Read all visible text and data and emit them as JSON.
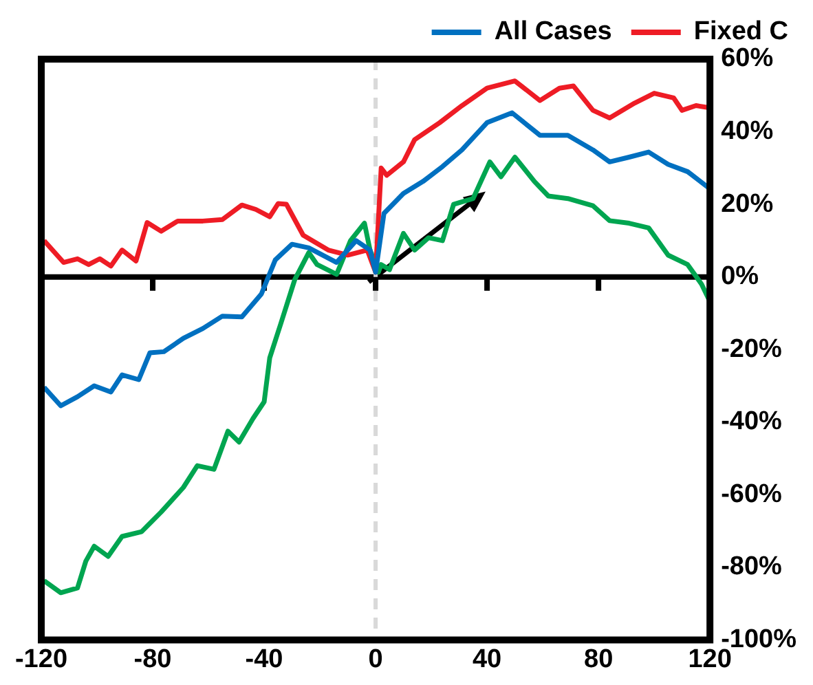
{
  "chart_data": {
    "type": "line",
    "x": [
      -119,
      -112,
      -107,
      -103,
      -99,
      -95,
      -91,
      -86,
      -82,
      -77,
      -71,
      -62,
      -55,
      -48,
      -43,
      -38,
      -35,
      -32,
      -26,
      -17,
      -10,
      -3,
      0,
      2,
      4,
      10,
      14,
      23,
      31,
      40,
      50,
      59,
      66,
      71,
      78,
      84,
      93,
      100,
      107,
      110,
      115,
      120
    ],
    "series": [
      {
        "name": "All Cases",
        "color": "#0070c0",
        "x": [
          -119,
          -113,
          -107,
          -101,
          -95,
          -91,
          -85,
          -81,
          -76,
          -69,
          -62,
          -55,
          -48,
          -41,
          -36,
          -30,
          -24,
          -14,
          -7,
          -2,
          0,
          3,
          10,
          17,
          24,
          31,
          40,
          49,
          59,
          69,
          78,
          84,
          91,
          98,
          105,
          112,
          120
        ],
        "values": [
          -30.4,
          -35.5,
          -33,
          -30,
          -31.7,
          -27,
          -28.3,
          -20.9,
          -20.6,
          -16.9,
          -14.2,
          -10.8,
          -11,
          -4.7,
          4.7,
          9,
          8,
          4,
          10,
          7.4,
          1.3,
          17.5,
          23,
          26.3,
          30.4,
          35,
          42.5,
          45.2,
          39,
          39,
          35,
          31.7,
          33,
          34.4,
          31,
          29,
          24.3
        ]
      },
      {
        "name": "Fixed C",
        "color": "#ee1c25",
        "values": [
          10,
          4,
          5,
          3.4,
          5,
          3,
          7.4,
          4.4,
          15,
          12.6,
          15.4,
          15.4,
          15.8,
          19.8,
          18.6,
          16.6,
          20.2,
          20,
          11.5,
          7.4,
          6,
          7.4,
          1.3,
          30,
          28,
          31.7,
          37.8,
          42.5,
          47.2,
          52,
          54,
          48.6,
          52,
          52.6,
          45.9,
          43.8,
          47.9,
          50.6,
          49.3,
          45.9,
          47.2,
          46.6
        ]
      },
      {
        "color": "#00a550",
        "x": [
          -119,
          -113,
          -107,
          -104,
          -101,
          -96,
          -91,
          -84,
          -77,
          -69,
          -64,
          -58,
          -53,
          -49,
          -44,
          -40,
          -38,
          -34,
          -29,
          -24,
          -21,
          -14,
          -9,
          -4,
          -2,
          1,
          2,
          5,
          10,
          14,
          19,
          24,
          28,
          35,
          41,
          45,
          50,
          57,
          62,
          69,
          78,
          84,
          91,
          98,
          105,
          112,
          117,
          120
        ],
        "values": [
          -83.7,
          -87,
          -85.7,
          -78.3,
          -74.2,
          -77,
          -71.5,
          -70.2,
          -64.8,
          -58,
          -52,
          -53,
          -42.5,
          -45.5,
          -39,
          -34.4,
          -22.3,
          -12.8,
          -0.7,
          6.7,
          3.4,
          0.7,
          10,
          14.8,
          7.4,
          1.3,
          3.4,
          2,
          12,
          7.4,
          10.8,
          10,
          20,
          21.6,
          31.7,
          27.6,
          33,
          26.3,
          22.3,
          21.6,
          19.6,
          15.5,
          14.8,
          13.5,
          6,
          3.4,
          -2,
          -6.8
        ]
      }
    ],
    "xlim": [
      -120,
      120
    ],
    "xticks": [
      -120,
      -80,
      -40,
      0,
      40,
      80,
      120
    ],
    "ylim": [
      -100,
      60
    ],
    "yticks": [
      {
        "value": -100,
        "label": "-100%"
      },
      {
        "value": -80,
        "label": "-80%"
      },
      {
        "value": -60,
        "label": "-60%"
      },
      {
        "value": -40,
        "label": "-40%"
      },
      {
        "value": -20,
        "label": "-20%"
      },
      {
        "value": 0,
        "label": "0%"
      },
      {
        "value": 20,
        "label": "20%"
      },
      {
        "value": 40,
        "label": "40%"
      },
      {
        "value": 60,
        "label": "60%"
      }
    ],
    "ref_lines": [
      {
        "axis": "y",
        "value": 0,
        "color": "#000000",
        "line_style": "solid"
      },
      {
        "axis": "x",
        "value": 0,
        "color": "#d9d9d9",
        "line_style": "dashed"
      }
    ],
    "grid": false,
    "legend": "top right",
    "marker": "none",
    "line_style": "solid"
  }
}
